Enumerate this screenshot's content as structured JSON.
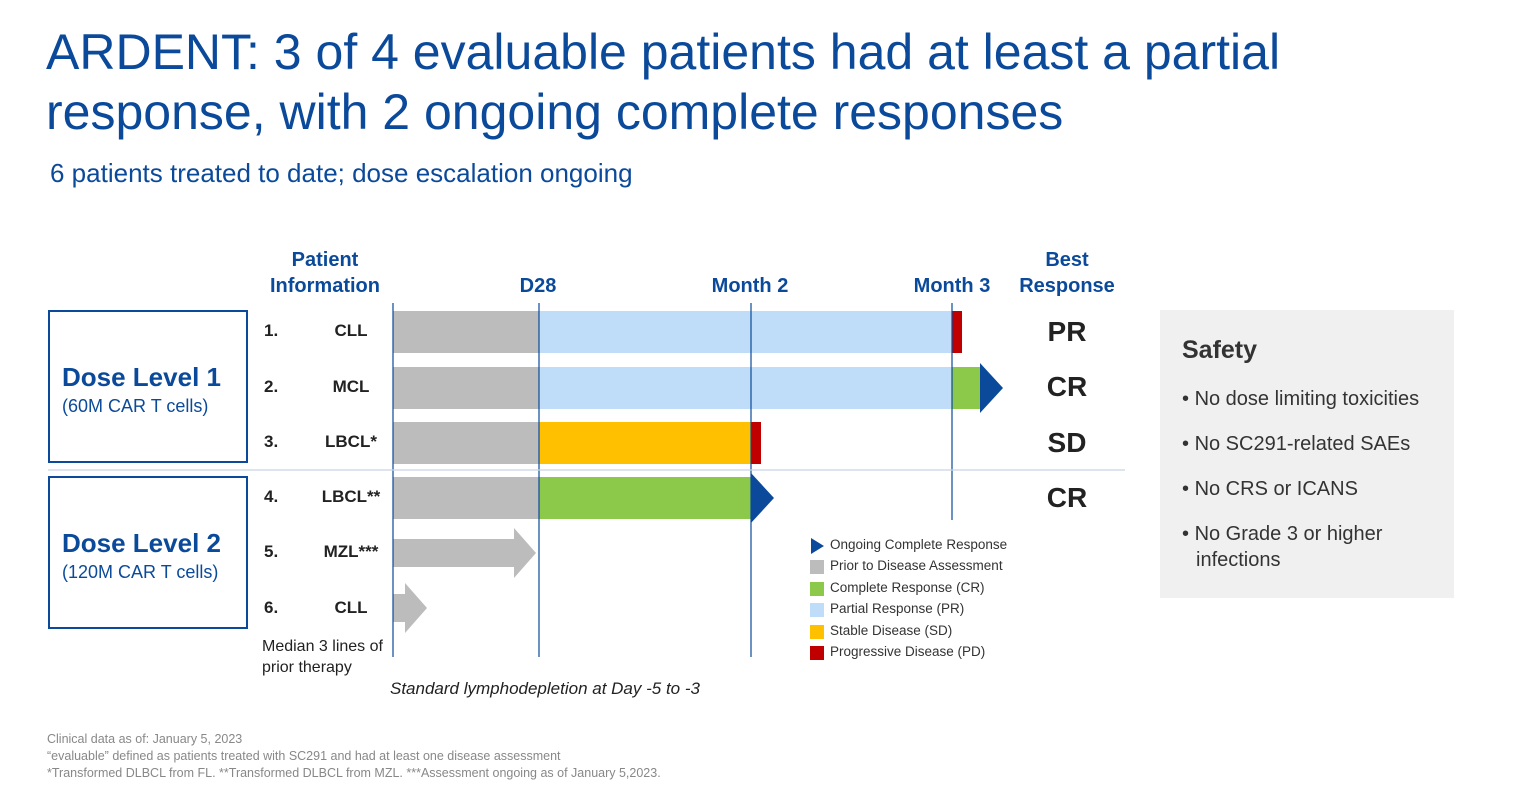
{
  "title": "ARDENT: 3 of 4 evaluable patients had at least a partial response, with 2 ongoing complete responses",
  "subtitle": "6 patients treated to date; dose escalation ongoing",
  "headers": {
    "patient_info": "Patient Information",
    "d28": "D28",
    "month2": "Month 2",
    "month3": "Month 3",
    "best_response": "Best Response"
  },
  "dose_levels": [
    {
      "name": "Dose Level 1",
      "sub": "(60M CAR T cells)"
    },
    {
      "name": "Dose Level 2",
      "sub": "(120M CAR T cells)"
    }
  ],
  "colors": {
    "prior": "#bcbcbc",
    "cr": "#8cc94a",
    "pr": "#bfdcf8",
    "sd": "#ffc000",
    "pd": "#c00000",
    "ongoing": "#0b4a9a",
    "title": "#0b4a9a"
  },
  "chart_data": {
    "type": "swimmer",
    "time_markers": [
      "D28",
      "Month 2",
      "Month 3"
    ],
    "patients": [
      {
        "num": "1.",
        "dx": "CLL",
        "best": "PR",
        "segments": [
          {
            "status": "prior",
            "end": "D28"
          },
          {
            "status": "pr",
            "end": "Month 3"
          },
          {
            "status": "pd",
            "end": "Month 3"
          }
        ],
        "ongoing": false
      },
      {
        "num": "2.",
        "dx": "MCL",
        "best": "CR",
        "segments": [
          {
            "status": "prior",
            "end": "D28"
          },
          {
            "status": "pr",
            "end": "Month 3"
          },
          {
            "status": "cr",
            "end": "Month 3"
          }
        ],
        "ongoing": true
      },
      {
        "num": "3.",
        "dx": "LBCL*",
        "best": "SD",
        "segments": [
          {
            "status": "prior",
            "end": "D28"
          },
          {
            "status": "sd",
            "end": "Month 2"
          },
          {
            "status": "pd",
            "end": "Month 2"
          }
        ],
        "ongoing": false
      },
      {
        "num": "4.",
        "dx": "LBCL**",
        "best": "CR",
        "segments": [
          {
            "status": "prior",
            "end": "D28"
          },
          {
            "status": "cr",
            "end": "Month 2"
          }
        ],
        "ongoing": true
      },
      {
        "num": "5.",
        "dx": "MZL***",
        "best": "",
        "segments": [
          {
            "status": "prior",
            "end": "D28"
          }
        ],
        "ongoing": false
      },
      {
        "num": "6.",
        "dx": "CLL",
        "best": "",
        "segments": [
          {
            "status": "prior",
            "end": "before D28"
          }
        ],
        "ongoing": false
      }
    ],
    "legend": [
      {
        "key": "ongoing",
        "label": "Ongoing Complete Response"
      },
      {
        "key": "prior",
        "label": "Prior to Disease Assessment"
      },
      {
        "key": "cr",
        "label": "Complete Response (CR)"
      },
      {
        "key": "pr",
        "label": "Partial Response (PR)"
      },
      {
        "key": "sd",
        "label": "Stable Disease (SD)"
      },
      {
        "key": "pd",
        "label": "Progressive Disease (PD)"
      }
    ]
  },
  "median_note": "Median 3 lines of prior therapy",
  "lymphodepletion_note": "Standard lymphodepletion at Day -5 to -3",
  "safety": {
    "title": "Safety",
    "items": [
      "No dose limiting toxicities",
      "No SC291-related SAEs",
      "No CRS or ICANS",
      "No Grade 3 or higher infections"
    ]
  },
  "footnotes": [
    "Clinical data as of: January 5, 2023",
    "“evaluable” defined as patients treated with SC291 and had at least one disease assessment",
    "*Transformed DLBCL from FL. **Transformed DLBCL from MZL. ***Assessment ongoing as of January 5,2023."
  ]
}
